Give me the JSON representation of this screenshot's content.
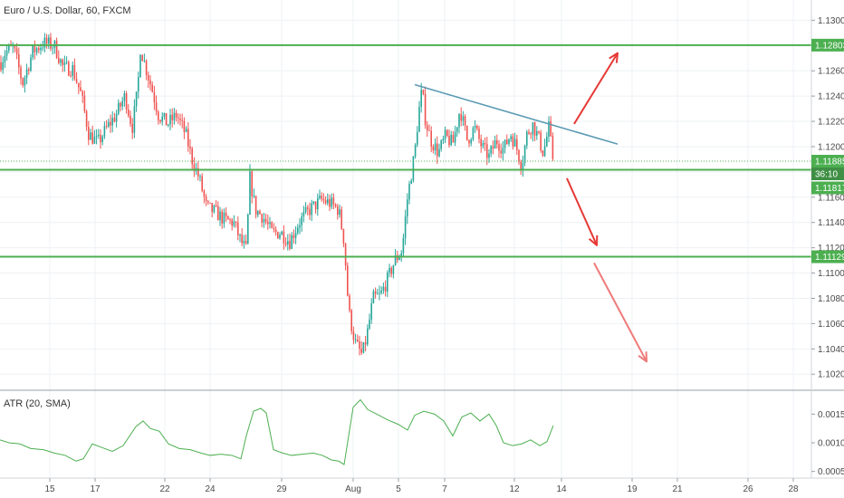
{
  "header": {
    "title": "Euro / U.S. Dollar, 60, FXCM"
  },
  "indicator": {
    "label": "ATR (20, SMA)"
  },
  "colors": {
    "up": "#26a69a",
    "down": "#ef5350",
    "level": "#4caf50",
    "trend": "#5b9bb5",
    "arrow": "#e53935",
    "arrow_light": "#ef7a7a",
    "atr": "#4caf50",
    "current": "#4caf50",
    "grid": "#eef1f5"
  },
  "price_badges": [
    {
      "label": "1.12803",
      "kind": "level"
    },
    {
      "label": "1.11885",
      "kind": "current"
    },
    {
      "label": "36:10",
      "kind": "countdown"
    },
    {
      "label": "1.11817",
      "kind": "level"
    },
    {
      "label": "1.11129",
      "kind": "level"
    }
  ],
  "chart_data": [
    {
      "type": "candlestick",
      "title": "Euro / U.S. Dollar, 60, FXCM",
      "y_ticks": [
        "1.13000",
        "1.12800",
        "1.12600",
        "1.12400",
        "1.12200",
        "1.12000",
        "1.11800",
        "1.11600",
        "1.11400",
        "1.11200",
        "1.11000",
        "1.10800",
        "1.10600",
        "1.10400",
        "1.10200"
      ],
      "ylim": [
        1.1008,
        1.1316
      ],
      "x_tick_labels": [
        "15",
        "17",
        "22",
        "24",
        "29",
        "Aug",
        "5",
        "7",
        "12",
        "14",
        "19",
        "21",
        "26",
        "28"
      ],
      "price_anchors": [
        {
          "x": 0,
          "y": 1.1265
        },
        {
          "x": 6,
          "y": 1.1275
        },
        {
          "x": 15,
          "y": 1.1278
        },
        {
          "x": 25,
          "y": 1.125
        },
        {
          "x": 36,
          "y": 1.1275
        },
        {
          "x": 48,
          "y": 1.1282
        },
        {
          "x": 60,
          "y": 1.128
        },
        {
          "x": 70,
          "y": 1.1262
        },
        {
          "x": 80,
          "y": 1.1262
        },
        {
          "x": 90,
          "y": 1.124
        },
        {
          "x": 98,
          "y": 1.121
        },
        {
          "x": 108,
          "y": 1.1203
        },
        {
          "x": 118,
          "y": 1.1215
        },
        {
          "x": 128,
          "y": 1.1225
        },
        {
          "x": 138,
          "y": 1.124
        },
        {
          "x": 146,
          "y": 1.1215
        },
        {
          "x": 152,
          "y": 1.1245
        },
        {
          "x": 155,
          "y": 1.1278
        },
        {
          "x": 162,
          "y": 1.126
        },
        {
          "x": 168,
          "y": 1.1245
        },
        {
          "x": 175,
          "y": 1.1225
        },
        {
          "x": 185,
          "y": 1.1218
        },
        {
          "x": 195,
          "y": 1.1225
        },
        {
          "x": 205,
          "y": 1.121
        },
        {
          "x": 212,
          "y": 1.119
        },
        {
          "x": 220,
          "y": 1.1175
        },
        {
          "x": 228,
          "y": 1.1152
        },
        {
          "x": 238,
          "y": 1.1148
        },
        {
          "x": 248,
          "y": 1.1142
        },
        {
          "x": 258,
          "y": 1.114
        },
        {
          "x": 266,
          "y": 1.1125
        },
        {
          "x": 272,
          "y": 1.1118
        },
        {
          "x": 276,
          "y": 1.1175
        },
        {
          "x": 282,
          "y": 1.115
        },
        {
          "x": 290,
          "y": 1.1145
        },
        {
          "x": 300,
          "y": 1.1132
        },
        {
          "x": 310,
          "y": 1.1132
        },
        {
          "x": 320,
          "y": 1.1125
        },
        {
          "x": 330,
          "y": 1.114
        },
        {
          "x": 342,
          "y": 1.115
        },
        {
          "x": 355,
          "y": 1.1158
        },
        {
          "x": 365,
          "y": 1.1155
        },
        {
          "x": 374,
          "y": 1.115
        },
        {
          "x": 380,
          "y": 1.1125
        },
        {
          "x": 385,
          "y": 1.107
        },
        {
          "x": 392,
          "y": 1.1045
        },
        {
          "x": 400,
          "y": 1.1035
        },
        {
          "x": 405,
          "y": 1.105
        },
        {
          "x": 412,
          "y": 1.108
        },
        {
          "x": 420,
          "y": 1.1082
        },
        {
          "x": 428,
          "y": 1.1095
        },
        {
          "x": 436,
          "y": 1.111
        },
        {
          "x": 444,
          "y": 1.1118
        },
        {
          "x": 450,
          "y": 1.116
        },
        {
          "x": 458,
          "y": 1.1195
        },
        {
          "x": 462,
          "y": 1.1225
        },
        {
          "x": 466,
          "y": 1.1245
        },
        {
          "x": 470,
          "y": 1.122
        },
        {
          "x": 476,
          "y": 1.1205
        },
        {
          "x": 484,
          "y": 1.1195
        },
        {
          "x": 492,
          "y": 1.1208
        },
        {
          "x": 500,
          "y": 1.1202
        },
        {
          "x": 508,
          "y": 1.123
        },
        {
          "x": 516,
          "y": 1.1205
        },
        {
          "x": 524,
          "y": 1.1215
        },
        {
          "x": 532,
          "y": 1.12
        },
        {
          "x": 540,
          "y": 1.1192
        },
        {
          "x": 548,
          "y": 1.1205
        },
        {
          "x": 556,
          "y": 1.1198
        },
        {
          "x": 564,
          "y": 1.121
        },
        {
          "x": 570,
          "y": 1.12
        },
        {
          "x": 576,
          "y": 1.1185
        },
        {
          "x": 582,
          "y": 1.121
        },
        {
          "x": 588,
          "y": 1.1218
        },
        {
          "x": 594,
          "y": 1.1208
        },
        {
          "x": 600,
          "y": 1.1195
        },
        {
          "x": 606,
          "y": 1.1215
        },
        {
          "x": 611,
          "y": 1.11885
        }
      ],
      "horizontal_levels": [
        1.12803,
        1.11817,
        1.11129
      ],
      "current_price": 1.11885,
      "trendline": [
        {
          "x": 458,
          "y": 1.1249
        },
        {
          "x": 682,
          "y": 1.1202
        }
      ],
      "arrows": [
        {
          "from": {
            "x": 634,
            "y": 1.1218
          },
          "to": {
            "x": 682,
            "y": 1.1274
          },
          "tone": "strong"
        },
        {
          "from": {
            "x": 626,
            "y": 1.1175
          },
          "to": {
            "x": 659,
            "y": 1.1122
          },
          "tone": "strong"
        },
        {
          "from": {
            "x": 656,
            "y": 1.1108
          },
          "to": {
            "x": 714,
            "y": 1.103
          },
          "tone": "light"
        }
      ]
    },
    {
      "type": "line",
      "title": "ATR (20, SMA)",
      "series": [
        {
          "name": "ATR (20, SMA)",
          "values": [
            {
              "x": 0,
              "y": 0.00105
            },
            {
              "x": 10,
              "y": 0.001
            },
            {
              "x": 22,
              "y": 0.00098
            },
            {
              "x": 34,
              "y": 0.0009
            },
            {
              "x": 48,
              "y": 0.00088
            },
            {
              "x": 60,
              "y": 0.00082
            },
            {
              "x": 72,
              "y": 0.00078
            },
            {
              "x": 84,
              "y": 0.00068
            },
            {
              "x": 92,
              "y": 0.00072
            },
            {
              "x": 102,
              "y": 0.00098
            },
            {
              "x": 112,
              "y": 0.00092
            },
            {
              "x": 124,
              "y": 0.00085
            },
            {
              "x": 136,
              "y": 0.00095
            },
            {
              "x": 150,
              "y": 0.00128
            },
            {
              "x": 158,
              "y": 0.00138
            },
            {
              "x": 166,
              "y": 0.00125
            },
            {
              "x": 176,
              "y": 0.0012
            },
            {
              "x": 186,
              "y": 0.00098
            },
            {
              "x": 198,
              "y": 0.0009
            },
            {
              "x": 210,
              "y": 0.00088
            },
            {
              "x": 222,
              "y": 0.00082
            },
            {
              "x": 232,
              "y": 0.00078
            },
            {
              "x": 244,
              "y": 0.0008
            },
            {
              "x": 256,
              "y": 0.00078
            },
            {
              "x": 266,
              "y": 0.00072
            },
            {
              "x": 272,
              "y": 0.00112
            },
            {
              "x": 280,
              "y": 0.00155
            },
            {
              "x": 288,
              "y": 0.0016
            },
            {
              "x": 294,
              "y": 0.00152
            },
            {
              "x": 302,
              "y": 0.00088
            },
            {
              "x": 312,
              "y": 0.00082
            },
            {
              "x": 322,
              "y": 0.00078
            },
            {
              "x": 334,
              "y": 0.0008
            },
            {
              "x": 346,
              "y": 0.00082
            },
            {
              "x": 356,
              "y": 0.00078
            },
            {
              "x": 366,
              "y": 0.0007
            },
            {
              "x": 374,
              "y": 0.00068
            },
            {
              "x": 380,
              "y": 0.00062
            },
            {
              "x": 384,
              "y": 0.00102
            },
            {
              "x": 390,
              "y": 0.00162
            },
            {
              "x": 398,
              "y": 0.00175
            },
            {
              "x": 406,
              "y": 0.00158
            },
            {
              "x": 416,
              "y": 0.0015
            },
            {
              "x": 428,
              "y": 0.0014
            },
            {
              "x": 440,
              "y": 0.00132
            },
            {
              "x": 450,
              "y": 0.00122
            },
            {
              "x": 458,
              "y": 0.00148
            },
            {
              "x": 468,
              "y": 0.00155
            },
            {
              "x": 480,
              "y": 0.0015
            },
            {
              "x": 490,
              "y": 0.00138
            },
            {
              "x": 500,
              "y": 0.00112
            },
            {
              "x": 510,
              "y": 0.00145
            },
            {
              "x": 520,
              "y": 0.00152
            },
            {
              "x": 530,
              "y": 0.00138
            },
            {
              "x": 540,
              "y": 0.0015
            },
            {
              "x": 548,
              "y": 0.0013
            },
            {
              "x": 556,
              "y": 0.001
            },
            {
              "x": 566,
              "y": 0.00095
            },
            {
              "x": 576,
              "y": 0.00098
            },
            {
              "x": 586,
              "y": 0.00105
            },
            {
              "x": 596,
              "y": 0.00095
            },
            {
              "x": 604,
              "y": 0.00102
            },
            {
              "x": 611,
              "y": 0.0013
            }
          ]
        }
      ],
      "y_ticks": [
        "0.00150",
        "0.00100",
        "0.00050"
      ],
      "ylim": [
        0.0004,
        0.0019
      ]
    }
  ]
}
